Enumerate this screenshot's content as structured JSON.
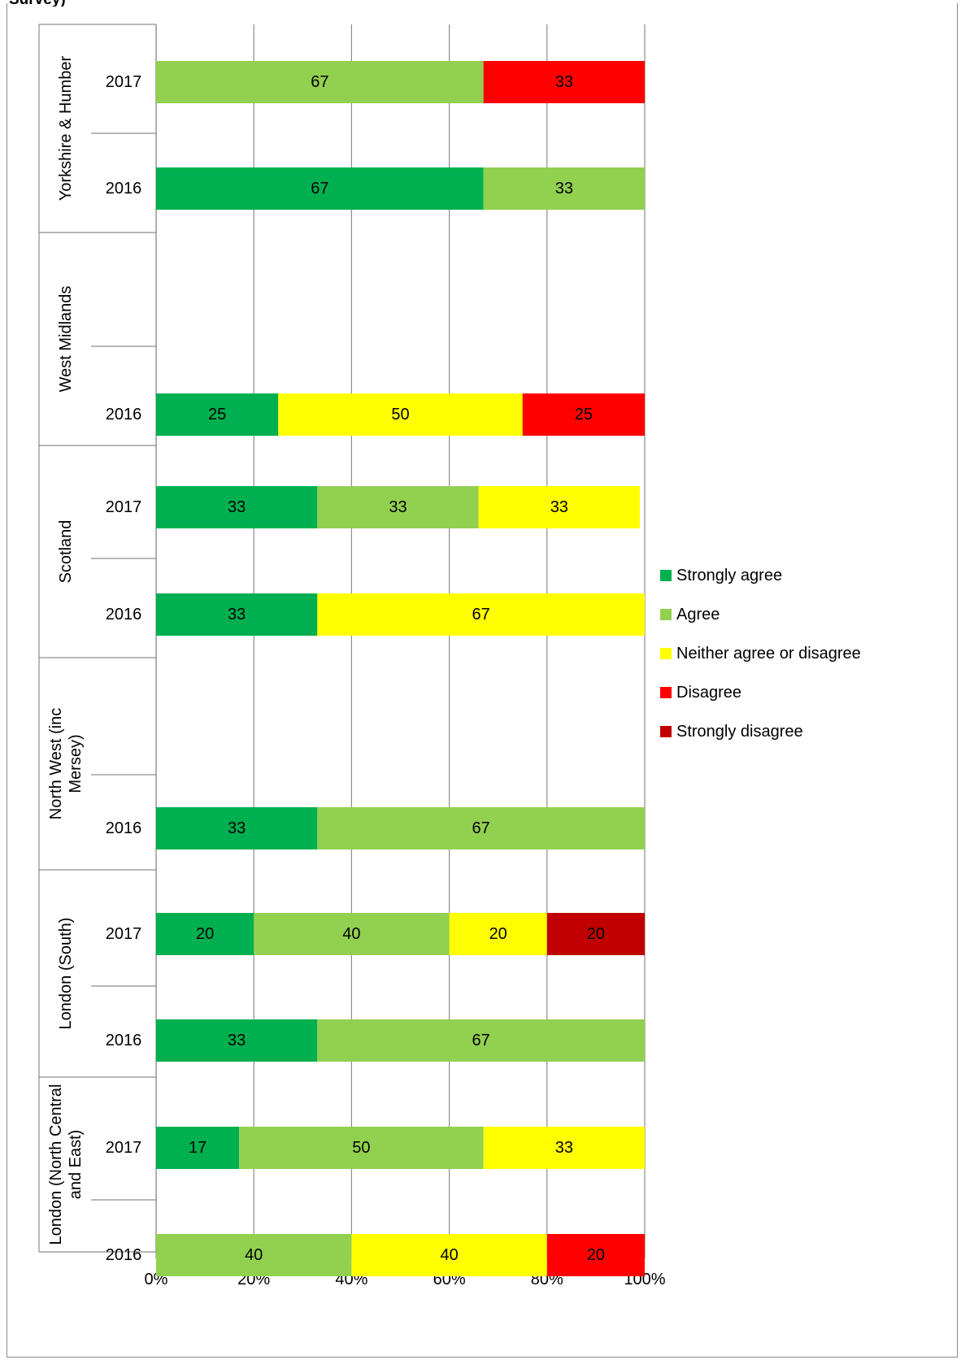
{
  "title_fragment": "Survey)",
  "chart_data": {
    "type": "bar",
    "orientation": "horizontal",
    "stacked": "percent",
    "xlim": [
      0,
      100
    ],
    "x_ticks": [
      "0%",
      "20%",
      "40%",
      "60%",
      "80%",
      "100%"
    ],
    "grid": true,
    "legend_position": "right",
    "legend": [
      {
        "name": "Strongly agree",
        "color": "#00b050"
      },
      {
        "name": "Agree",
        "color": "#92d050"
      },
      {
        "name": "Neither agree or disagree",
        "color": "#ffff00"
      },
      {
        "name": "Disagree",
        "color": "#ff0000"
      },
      {
        "name": "Strongly disagree",
        "color": "#c00000"
      }
    ],
    "groups": [
      {
        "name_lines": [
          "Yorkshire & Humber"
        ],
        "rows": [
          {
            "year": "2017",
            "values": [
              0,
              67,
              0,
              33,
              0
            ]
          },
          {
            "year": "2016",
            "values": [
              67,
              33,
              0,
              0,
              0
            ]
          }
        ]
      },
      {
        "name_lines": [
          "West Midlands"
        ],
        "rows": [
          {
            "year": "",
            "values": [
              0,
              0,
              0,
              0,
              0
            ]
          },
          {
            "year": "2016",
            "values": [
              25,
              0,
              50,
              25,
              0
            ]
          }
        ]
      },
      {
        "name_lines": [
          "Scotland"
        ],
        "rows": [
          {
            "year": "2017",
            "values": [
              33,
              33,
              33,
              0,
              0
            ]
          },
          {
            "year": "2016",
            "values": [
              33,
              0,
              67,
              0,
              0
            ]
          }
        ]
      },
      {
        "name_lines": [
          "North West (inc",
          "Mersey)"
        ],
        "rows": [
          {
            "year": "",
            "values": [
              0,
              0,
              0,
              0,
              0
            ]
          },
          {
            "year": "2016",
            "values": [
              33,
              67,
              0,
              0,
              0
            ]
          }
        ]
      },
      {
        "name_lines": [
          "London (South)"
        ],
        "rows": [
          {
            "year": "2017",
            "values": [
              20,
              40,
              20,
              0,
              20
            ]
          },
          {
            "year": "2016",
            "values": [
              33,
              67,
              0,
              0,
              0
            ]
          }
        ]
      },
      {
        "name_lines": [
          "London (North Central",
          "and East)"
        ],
        "rows": [
          {
            "year": "2017",
            "values": [
              17,
              50,
              33,
              0,
              0
            ]
          },
          {
            "year": "2016",
            "values": [
              0,
              40,
              40,
              20,
              0
            ]
          }
        ]
      }
    ]
  }
}
